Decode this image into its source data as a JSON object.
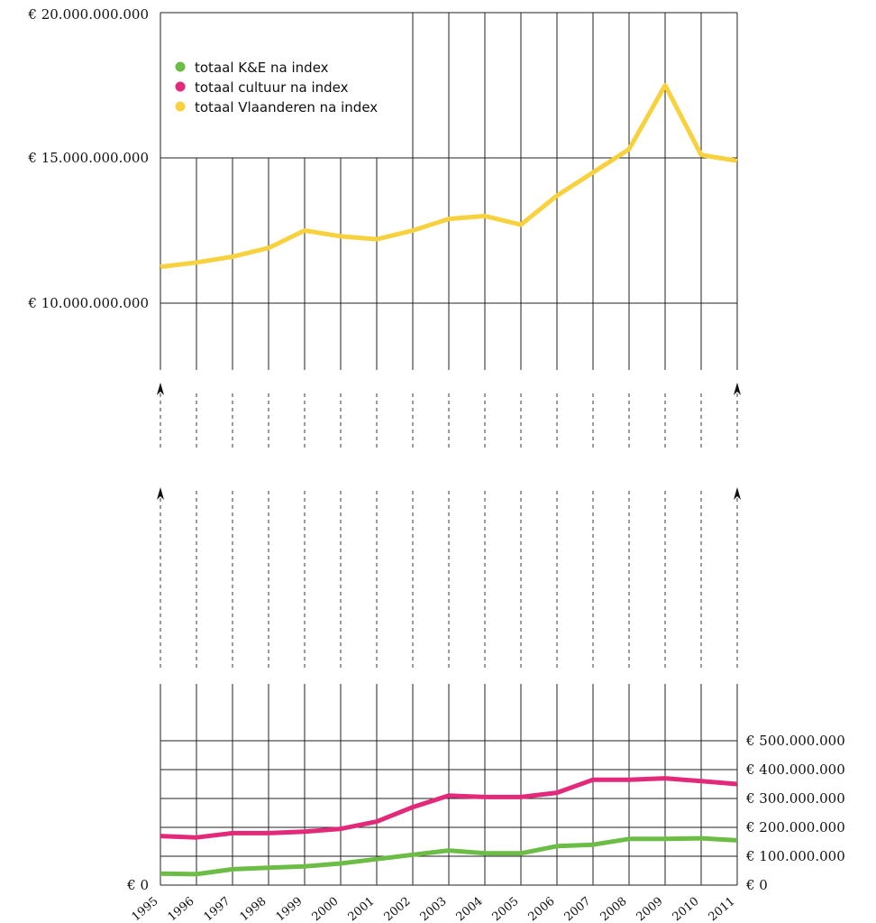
{
  "chart_data": {
    "type": "line",
    "x": [
      "1995",
      "1996",
      "1997",
      "1998",
      "1999",
      "2000",
      "2001",
      "2002",
      "2003",
      "2004",
      "2005",
      "2006",
      "2007",
      "2008",
      "2009",
      "2010",
      "2011"
    ],
    "upper_panel": {
      "y_ticks": [
        "€ 20.000.000.000",
        "€ 15.000.000.000",
        "€ 10.000.000.000"
      ],
      "y_tick_values": [
        20000000000,
        15000000000,
        10000000000
      ],
      "series": [
        {
          "name": "totaal Vlaanderen na index",
          "color": "#f7d23e",
          "values": [
            11250000000,
            11400000000,
            11600000000,
            11900000000,
            12500000000,
            12300000000,
            12200000000,
            12500000000,
            12900000000,
            13000000000,
            12700000000,
            13700000000,
            14500000000,
            15300000000,
            17500000000,
            15100000000,
            14900000000
          ]
        }
      ]
    },
    "lower_panel": {
      "y_ticks": [
        "€ 500.000.000",
        "€ 400.000.000",
        "€ 300.000.000",
        "€ 200.000.000",
        "€ 100.000.000",
        "€ 0"
      ],
      "y_tick_values": [
        500000000,
        400000000,
        300000000,
        200000000,
        100000000,
        0
      ],
      "left_zero_label": "€ 0",
      "series": [
        {
          "name": "totaal cultuur na index",
          "color": "#e2297a",
          "values": [
            170000000,
            165000000,
            180000000,
            180000000,
            185000000,
            195000000,
            220000000,
            270000000,
            310000000,
            305000000,
            305000000,
            320000000,
            365000000,
            365000000,
            370000000,
            360000000,
            350000000
          ]
        },
        {
          "name": "totaal K&E na index",
          "color": "#6cbd45",
          "values": [
            40000000,
            38000000,
            55000000,
            60000000,
            65000000,
            75000000,
            90000000,
            105000000,
            120000000,
            110000000,
            110000000,
            135000000,
            140000000,
            160000000,
            160000000,
            162000000,
            155000000
          ]
        }
      ]
    },
    "legend": [
      {
        "label": "totaal K&E na index",
        "color": "#6cbd45"
      },
      {
        "label": "totaal cultuur na index",
        "color": "#e2297a"
      },
      {
        "label": "totaal Vlaanderen na index",
        "color": "#f7d23e"
      }
    ],
    "legend_position": "top-left",
    "grid": true
  }
}
